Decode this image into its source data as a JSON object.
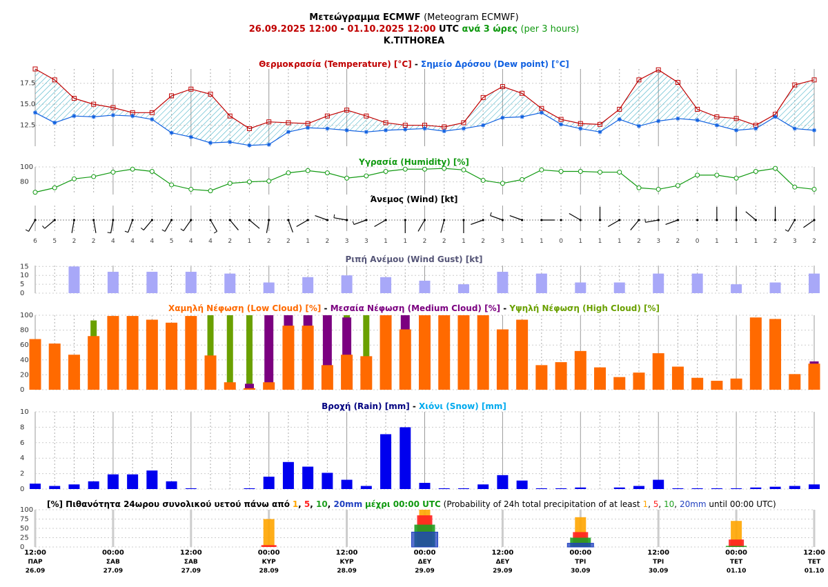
{
  "header": {
    "line1_bold": "Μετεώγραμμα ECMWF",
    "line1_normal": "(Meteogram ECMWF)",
    "date_start": "26.09.2025 12:00",
    "dash": " - ",
    "date_end": "01.10.2025 12:00",
    "utc": "UTC",
    "every3_bold": "ανά 3 ώρες",
    "every3_normal": "(per 3 hours)",
    "station": "K.TITHOREA"
  },
  "panel_titles": {
    "temp_a": "Θερμοκρασία (Temperature) [°C]",
    "temp_sep": " - ",
    "temp_b": "Σημείο Δρόσου (Dew point) [°C]",
    "humidity": "Υγρασία (Humidity) [%]",
    "wind": "Άνεμος (Wind) [kt]",
    "gust": "Ριπή Ανέμου (Wind Gust) [kt]",
    "cloud_low": "Χαμηλή Νέφωση (Low Cloud) [%]",
    "cloud_sep1": " - ",
    "cloud_med": "Μεσαία Νέφωση (Medium Cloud) [%]",
    "cloud_sep2": " - ",
    "cloud_high": "Υψηλή Νέφωση (High Cloud) [%]",
    "rain": "Βροχή (Rain) [mm]",
    "rain_sep": " - ",
    "snow": "Χιόνι (Snow) [mm]",
    "prob_a": "[%] Πιθανότητα 24ωρου συνολικού υετού πάνω από",
    "prob_t1": "1",
    "prob_c1": ", ",
    "prob_t5": "5",
    "prob_c2": ", ",
    "prob_t10": "10",
    "prob_c3": ", ",
    "prob_t20": "20mm",
    "prob_b": "μέχρι 00:00 UTC",
    "prob_en_a": "(Probability of 24h total precipitation of at least",
    "prob_en_1": "1",
    "prob_en_c1": ", ",
    "prob_en_5": "5",
    "prob_en_c2": ", ",
    "prob_en_10": "10",
    "prob_en_c3": ", ",
    "prob_en_20": "20mm",
    "prob_en_b": "until 00:00 UTC)"
  },
  "colors": {
    "temperature": "#c00000",
    "dewpoint": "#1060e0",
    "humidity": "#109910",
    "gust": "#a8a8f8",
    "low_cloud": "#ff6a00",
    "medium_cloud": "#7b0080",
    "high_cloud": "#6aa000",
    "rain": "#0000ee",
    "snow": "#00aaee",
    "p1": "#ffa500",
    "p5": "#ff2020",
    "p10": "#20a020",
    "p20": "#2040c0"
  },
  "chart_data": {
    "type": "meteogram",
    "x": [
      "26.09 12:00",
      "26.09 15:00",
      "26.09 18:00",
      "26.09 21:00",
      "27.09 00:00",
      "27.09 03:00",
      "27.09 06:00",
      "27.09 09:00",
      "27.09 12:00",
      "27.09 15:00",
      "27.09 18:00",
      "27.09 21:00",
      "28.09 00:00",
      "28.09 03:00",
      "28.09 06:00",
      "28.09 09:00",
      "28.09 12:00",
      "28.09 15:00",
      "28.09 18:00",
      "28.09 21:00",
      "29.09 00:00",
      "29.09 03:00",
      "29.09 06:00",
      "29.09 09:00",
      "29.09 12:00",
      "29.09 15:00",
      "29.09 18:00",
      "29.09 21:00",
      "30.09 00:00",
      "30.09 03:00",
      "30.09 06:00",
      "30.09 09:00",
      "30.09 12:00",
      "30.09 15:00",
      "30.09 18:00",
      "30.09 21:00",
      "01.10 00:00",
      "01.10 03:00",
      "01.10 06:00",
      "01.10 09:00",
      "01.10 12:00"
    ],
    "x_ticks": [
      {
        "time": "12:00",
        "day": "ΠΑΡ",
        "date": "26.09"
      },
      {
        "time": "00:00",
        "day": "ΣΑΒ",
        "date": "27.09"
      },
      {
        "time": "12:00",
        "day": "ΣΑΒ",
        "date": "27.09"
      },
      {
        "time": "00:00",
        "day": "ΚΥΡ",
        "date": "28.09"
      },
      {
        "time": "12:00",
        "day": "ΚΥΡ",
        "date": "28.09"
      },
      {
        "time": "00:00",
        "day": "ΔΕΥ",
        "date": "29.09"
      },
      {
        "time": "12:00",
        "day": "ΔΕΥ",
        "date": "29.09"
      },
      {
        "time": "00:00",
        "day": "ΤΡΙ",
        "date": "30.09"
      },
      {
        "time": "12:00",
        "day": "ΤΡΙ",
        "date": "30.09"
      },
      {
        "time": "00:00",
        "day": "ΤΕΤ",
        "date": "01.10"
      },
      {
        "time": "12:00",
        "day": "ΤΕΤ",
        "date": "01.10"
      }
    ],
    "temperature": [
      19.2,
      17.9,
      15.7,
      15.0,
      14.6,
      14.0,
      14.0,
      16.0,
      16.8,
      16.2,
      13.6,
      12.1,
      12.9,
      12.8,
      12.7,
      13.6,
      14.3,
      13.6,
      12.8,
      12.5,
      12.5,
      12.3,
      12.8,
      15.8,
      17.1,
      16.3,
      14.5,
      13.2,
      12.7,
      12.6,
      14.4,
      17.9,
      19.1,
      17.6,
      14.4,
      13.5,
      13.3,
      12.5,
      13.8,
      17.3,
      17.9
    ],
    "dewpoint": [
      14.0,
      12.8,
      13.6,
      13.5,
      13.7,
      13.6,
      13.2,
      11.6,
      11.1,
      10.4,
      10.5,
      10.1,
      10.2,
      11.7,
      12.2,
      12.1,
      11.9,
      11.7,
      11.9,
      12.0,
      12.1,
      11.8,
      12.1,
      12.5,
      13.4,
      13.5,
      14.0,
      12.6,
      12.1,
      11.7,
      13.2,
      12.4,
      13.0,
      13.3,
      13.1,
      12.5,
      11.9,
      12.1,
      13.5,
      12.1,
      11.9
    ],
    "temp_yticks": [
      12.5,
      15.0,
      17.5
    ],
    "humidity": [
      66,
      72,
      84,
      87,
      93,
      97,
      94,
      76,
      70,
      68,
      78,
      80,
      81,
      92,
      95,
      92,
      85,
      88,
      94,
      97,
      97,
      98,
      96,
      82,
      78,
      83,
      96,
      94,
      94,
      93,
      93,
      72,
      70,
      75,
      89,
      89,
      85,
      94,
      98,
      73,
      70
    ],
    "humidity_yticks": [
      80,
      100
    ],
    "wind_speed": [
      6,
      5,
      2,
      2,
      4,
      4,
      4,
      5,
      4,
      4,
      2,
      1,
      2,
      2,
      1,
      2,
      3,
      3,
      1,
      1,
      2,
      2,
      1,
      2,
      3,
      1,
      1,
      0,
      1,
      1,
      1,
      2,
      3,
      2,
      0,
      1,
      1,
      1,
      2,
      3,
      2
    ],
    "wind_dir_deg": [
      210,
      230,
      190,
      170,
      190,
      200,
      220,
      210,
      215,
      150,
      140,
      130,
      190,
      160,
      240,
      290,
      280,
      250,
      240,
      180,
      210,
      195,
      180,
      250,
      290,
      290,
      90,
      310,
      300,
      0,
      240,
      220,
      260,
      250,
      0,
      0,
      0,
      310,
      0,
      210,
      235
    ],
    "gust": [
      15,
      12,
      12,
      12,
      11,
      6,
      9,
      10,
      9,
      7,
      5,
      12,
      11,
      6,
      6,
      11,
      11,
      5,
      6,
      11
    ],
    "gust_yticks": [
      0,
      5,
      10,
      15
    ],
    "low_cloud": [
      68,
      62,
      47,
      72,
      99,
      99,
      94,
      90,
      99,
      46,
      10,
      2,
      10,
      86,
      86,
      33,
      47,
      45,
      100,
      81,
      100,
      100,
      100,
      100,
      81,
      94,
      33,
      37,
      52,
      30,
      17,
      23,
      49,
      31,
      16,
      12,
      15,
      97,
      95,
      21,
      35
    ],
    "medium_cloud": [
      0,
      0,
      0,
      0,
      0,
      0,
      0,
      0,
      0,
      0,
      0,
      8,
      100,
      100,
      100,
      100,
      97,
      0,
      0,
      100,
      0,
      0,
      0,
      0,
      0,
      0,
      0,
      0,
      0,
      0,
      0,
      0,
      0,
      0,
      0,
      0,
      0,
      0,
      0,
      0,
      38
    ],
    "high_cloud": [
      0,
      0,
      0,
      93,
      0,
      0,
      0,
      0,
      0,
      100,
      100,
      100,
      0,
      0,
      0,
      0,
      100,
      100,
      0,
      0,
      0,
      0,
      0,
      0,
      0,
      0,
      0,
      0,
      0,
      0,
      0,
      0,
      0,
      0,
      0,
      0,
      0,
      0,
      0,
      0,
      0
    ],
    "cloud_yticks": [
      0,
      20,
      40,
      60,
      80,
      100
    ],
    "rain": [
      0.7,
      0.4,
      0.6,
      1.0,
      1.9,
      1.9,
      2.4,
      1.0,
      0.1,
      0.0,
      0.0,
      0.1,
      1.6,
      3.5,
      2.9,
      2.1,
      1.2,
      0.4,
      7.1,
      8.0,
      0.8,
      0.1,
      0.1,
      0.6,
      1.8,
      1.1,
      0.1,
      0.1,
      0.2,
      0.0,
      0.2,
      0.4,
      1.2,
      0.1,
      0.1,
      0.1,
      0.1,
      0.2,
      0.3,
      0.4,
      0.6
    ],
    "snow": [
      0,
      0,
      0,
      0,
      0,
      0,
      0,
      0,
      0,
      0,
      0,
      0,
      0,
      0,
      0,
      0,
      0,
      0,
      0,
      0,
      0,
      0,
      0,
      0,
      0,
      0,
      0,
      0,
      0,
      0,
      0,
      0,
      0,
      0,
      0,
      0,
      0,
      0,
      0,
      0,
      0
    ],
    "rain_yticks": [
      0,
      2,
      4,
      6,
      8,
      10
    ],
    "prob_yticks": [
      0,
      25,
      50,
      75,
      100
    ],
    "precip_prob": [
      {
        "at": "28.09 00:00",
        "p1": 75,
        "p5": 5,
        "p10": 0,
        "p20": 0
      },
      {
        "at": "29.09 00:00",
        "p1": 100,
        "p5": 85,
        "p10": 60,
        "p20": 40
      },
      {
        "at": "30.09 00:00",
        "p1": 80,
        "p5": 40,
        "p10": 25,
        "p20": 10
      },
      {
        "at": "01.10 00:00",
        "p1": 70,
        "p5": 20,
        "p10": 3,
        "p20": 0
      }
    ]
  }
}
